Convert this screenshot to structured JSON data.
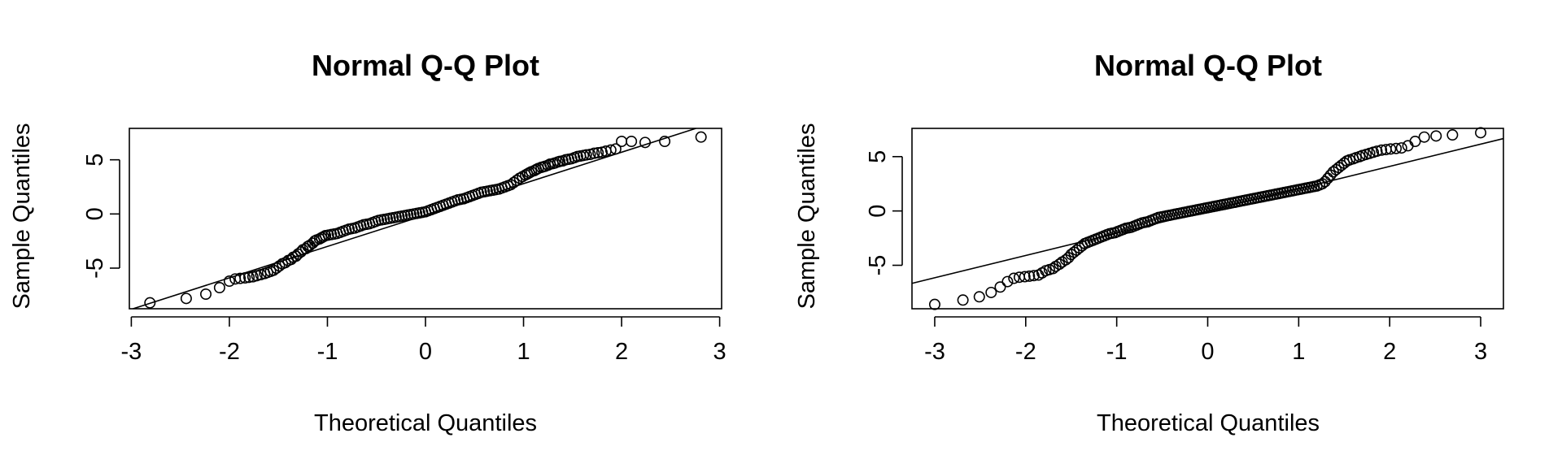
{
  "chart_data": [
    {
      "type": "scatter",
      "title": "Normal Q-Q Plot",
      "xlabel": "Theoretical Quantiles",
      "ylabel": "Sample Quantiles",
      "xlim": [
        -3.02,
        3.02
      ],
      "ylim": [
        -8.75,
        7.9
      ],
      "xticks": [
        -3,
        -2,
        -1,
        0,
        1,
        2,
        3
      ],
      "yticks": [
        -5,
        0,
        5
      ],
      "reference_line": {
        "slope": 2.9,
        "intercept": -0.1
      },
      "series": [
        {
          "x": [
            -2.81,
            -2.44,
            -2.24,
            -2.1,
            -2.0,
            -1.94,
            -1.89,
            -1.84,
            -1.8,
            -1.76,
            -1.72,
            -1.68,
            -1.64,
            -1.61,
            -1.58,
            -1.55,
            -1.52,
            -1.49,
            -1.46,
            -1.43,
            -1.4,
            -1.37,
            -1.35,
            -1.32,
            -1.3,
            -1.27,
            -1.25,
            -1.22,
            -1.2,
            -1.18,
            -1.15,
            -1.13,
            -1.11,
            -1.08,
            -1.06,
            -1.04,
            -1.02,
            -0.99,
            -0.96,
            -0.93,
            -0.9,
            -0.87,
            -0.84,
            -0.81,
            -0.78,
            -0.75,
            -0.72,
            -0.69,
            -0.66,
            -0.63,
            -0.6,
            -0.57,
            -0.54,
            -0.51,
            -0.48,
            -0.45,
            -0.42,
            -0.39,
            -0.36,
            -0.33,
            -0.3,
            -0.27,
            -0.24,
            -0.21,
            -0.18,
            -0.15,
            -0.12,
            -0.09,
            -0.06,
            -0.03,
            0.0,
            0.03,
            0.06,
            0.09,
            0.12,
            0.15,
            0.18,
            0.21,
            0.24,
            0.27,
            0.3,
            0.33,
            0.36,
            0.39,
            0.42,
            0.45,
            0.48,
            0.51,
            0.54,
            0.57,
            0.6,
            0.63,
            0.66,
            0.69,
            0.72,
            0.75,
            0.78,
            0.81,
            0.84,
            0.87,
            0.9,
            0.93,
            0.96,
            0.99,
            1.02,
            1.04,
            1.06,
            1.08,
            1.11,
            1.13,
            1.15,
            1.18,
            1.2,
            1.22,
            1.25,
            1.27,
            1.3,
            1.32,
            1.35,
            1.37,
            1.4,
            1.43,
            1.46,
            1.49,
            1.52,
            1.55,
            1.58,
            1.61,
            1.64,
            1.68,
            1.72,
            1.76,
            1.8,
            1.84,
            1.89,
            1.94,
            2.0,
            2.1,
            2.24,
            2.44,
            2.81
          ],
          "y": [
            -8.2,
            -7.8,
            -7.4,
            -6.8,
            -6.2,
            -6.0,
            -5.95,
            -5.9,
            -5.85,
            -5.8,
            -5.7,
            -5.6,
            -5.5,
            -5.4,
            -5.3,
            -5.2,
            -5.0,
            -4.8,
            -4.6,
            -4.5,
            -4.3,
            -4.2,
            -4.0,
            -3.9,
            -3.7,
            -3.5,
            -3.3,
            -3.2,
            -3.0,
            -2.9,
            -2.7,
            -2.5,
            -2.4,
            -2.3,
            -2.2,
            -2.1,
            -2.0,
            -1.95,
            -1.9,
            -1.85,
            -1.8,
            -1.7,
            -1.6,
            -1.5,
            -1.4,
            -1.35,
            -1.3,
            -1.2,
            -1.1,
            -1.0,
            -0.95,
            -0.9,
            -0.8,
            -0.7,
            -0.6,
            -0.55,
            -0.5,
            -0.45,
            -0.4,
            -0.35,
            -0.3,
            -0.25,
            -0.2,
            -0.15,
            -0.1,
            -0.05,
            0.0,
            0.05,
            0.1,
            0.15,
            0.2,
            0.3,
            0.4,
            0.5,
            0.6,
            0.7,
            0.8,
            0.9,
            1.0,
            1.1,
            1.2,
            1.3,
            1.35,
            1.4,
            1.5,
            1.6,
            1.7,
            1.8,
            1.9,
            2.0,
            2.05,
            2.1,
            2.15,
            2.2,
            2.25,
            2.3,
            2.4,
            2.5,
            2.6,
            2.7,
            2.9,
            3.1,
            3.3,
            3.45,
            3.6,
            3.7,
            3.8,
            3.9,
            4.0,
            4.1,
            4.2,
            4.3,
            4.35,
            4.4,
            4.5,
            4.6,
            4.65,
            4.7,
            4.8,
            4.85,
            4.9,
            5.0,
            5.05,
            5.1,
            5.2,
            5.3,
            5.35,
            5.4,
            5.45,
            5.5,
            5.6,
            5.65,
            5.7,
            5.8,
            5.9,
            6.0,
            6.7,
            6.7,
            6.6,
            6.7,
            7.1
          ]
        }
      ]
    },
    {
      "type": "scatter",
      "title": "Normal Q-Q Plot",
      "xlabel": "Theoretical Quantiles",
      "ylabel": "Sample Quantiles",
      "xlim": [
        -3.25,
        3.25
      ],
      "ylim": [
        -9.0,
        7.6
      ],
      "xticks": [
        -3,
        -2,
        -1,
        0,
        1,
        2,
        3
      ],
      "yticks": [
        -5,
        0,
        5
      ],
      "reference_line": {
        "slope": 2.05,
        "intercept": 0.0
      },
      "series": [
        {
          "x": [
            -3.0,
            -2.69,
            -2.51,
            -2.38,
            -2.28,
            -2.2,
            -2.13,
            -2.07,
            -2.01,
            -1.96,
            -1.91,
            -1.86,
            -1.82,
            -1.78,
            -1.74,
            -1.7,
            -1.67,
            -1.63,
            -1.6,
            -1.56,
            -1.53,
            -1.5,
            -1.47,
            -1.44,
            -1.41,
            -1.38,
            -1.35,
            -1.32,
            -1.29,
            -1.26,
            -1.23,
            -1.2,
            -1.17,
            -1.14,
            -1.11,
            -1.08,
            -1.05,
            -1.02,
            -0.99,
            -0.96,
            -0.93,
            -0.9,
            -0.87,
            -0.84,
            -0.81,
            -0.78,
            -0.75,
            -0.72,
            -0.69,
            -0.66,
            -0.63,
            -0.6,
            -0.57,
            -0.54,
            -0.51,
            -0.48,
            -0.45,
            -0.42,
            -0.39,
            -0.36,
            -0.33,
            -0.3,
            -0.27,
            -0.24,
            -0.21,
            -0.18,
            -0.15,
            -0.12,
            -0.09,
            -0.06,
            -0.03,
            0.0,
            0.03,
            0.06,
            0.09,
            0.12,
            0.15,
            0.18,
            0.21,
            0.24,
            0.27,
            0.3,
            0.33,
            0.36,
            0.39,
            0.42,
            0.45,
            0.48,
            0.51,
            0.54,
            0.57,
            0.6,
            0.63,
            0.66,
            0.69,
            0.72,
            0.75,
            0.78,
            0.81,
            0.84,
            0.87,
            0.9,
            0.93,
            0.96,
            0.99,
            1.02,
            1.05,
            1.08,
            1.11,
            1.14,
            1.17,
            1.2,
            1.23,
            1.26,
            1.29,
            1.32,
            1.35,
            1.38,
            1.41,
            1.44,
            1.47,
            1.5,
            1.53,
            1.56,
            1.6,
            1.63,
            1.67,
            1.7,
            1.74,
            1.78,
            1.82,
            1.86,
            1.91,
            1.96,
            2.01,
            2.07,
            2.13,
            2.2,
            2.28,
            2.38,
            2.51,
            2.69,
            3.0
          ],
          "y": [
            -8.6,
            -8.2,
            -7.9,
            -7.5,
            -7.0,
            -6.5,
            -6.2,
            -6.1,
            -6.05,
            -6.0,
            -5.95,
            -5.9,
            -5.7,
            -5.5,
            -5.4,
            -5.3,
            -5.1,
            -4.9,
            -4.7,
            -4.5,
            -4.3,
            -4.0,
            -3.8,
            -3.6,
            -3.4,
            -3.2,
            -3.0,
            -2.9,
            -2.8,
            -2.7,
            -2.6,
            -2.5,
            -2.4,
            -2.3,
            -2.2,
            -2.1,
            -2.05,
            -2.0,
            -1.9,
            -1.8,
            -1.7,
            -1.6,
            -1.55,
            -1.5,
            -1.4,
            -1.3,
            -1.2,
            -1.1,
            -1.05,
            -1.0,
            -0.9,
            -0.8,
            -0.7,
            -0.6,
            -0.55,
            -0.5,
            -0.45,
            -0.4,
            -0.35,
            -0.3,
            -0.25,
            -0.2,
            -0.15,
            -0.1,
            -0.05,
            0.0,
            0.05,
            0.1,
            0.15,
            0.2,
            0.25,
            0.3,
            0.35,
            0.4,
            0.45,
            0.5,
            0.55,
            0.6,
            0.65,
            0.7,
            0.75,
            0.8,
            0.85,
            0.9,
            0.95,
            1.0,
            1.05,
            1.1,
            1.15,
            1.2,
            1.25,
            1.3,
            1.35,
            1.4,
            1.45,
            1.5,
            1.55,
            1.6,
            1.65,
            1.7,
            1.75,
            1.8,
            1.85,
            1.9,
            1.95,
            2.0,
            2.05,
            2.1,
            2.15,
            2.2,
            2.25,
            2.3,
            2.4,
            2.5,
            2.7,
            3.0,
            3.3,
            3.6,
            3.8,
            4.0,
            4.2,
            4.4,
            4.6,
            4.7,
            4.8,
            4.9,
            5.0,
            5.1,
            5.2,
            5.3,
            5.4,
            5.5,
            5.6,
            5.65,
            5.7,
            5.75,
            5.8,
            6.0,
            6.4,
            6.8,
            6.9,
            7.0,
            7.2
          ]
        }
      ]
    }
  ]
}
